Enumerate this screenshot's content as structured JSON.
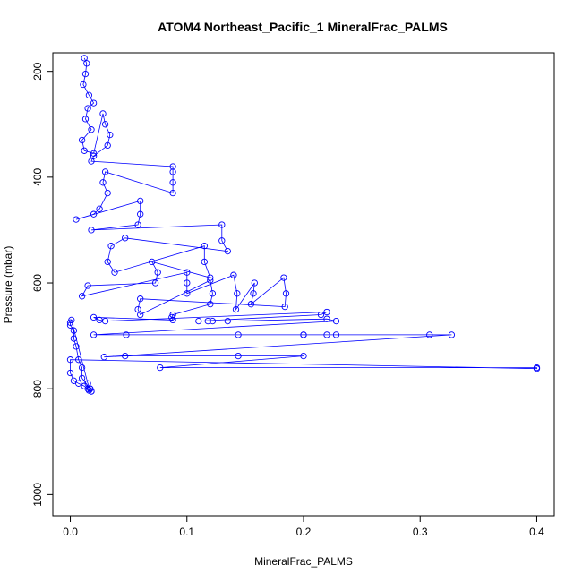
{
  "chart_data": {
    "type": "scatter",
    "title": "ATOM4 Northeast_Pacific_1 MineralFrac_PALMS",
    "xlabel": "MineralFrac_PALMS",
    "ylabel": "Pressure (mbar)",
    "xlim": [
      -0.015,
      0.415
    ],
    "ylim": [
      1040,
      165
    ],
    "y_reversed": true,
    "grid": false,
    "legend": "none",
    "xticks": [
      0.0,
      0.1,
      0.2,
      0.3,
      0.4
    ],
    "xtick_labels": [
      "0.0",
      "0.1",
      "0.2",
      "0.3",
      "0.4"
    ],
    "yticks": [
      200,
      400,
      600,
      800,
      1000
    ],
    "ytick_labels": [
      "200",
      "400",
      "600",
      "800",
      "1000"
    ],
    "marker_color": "#0000ff",
    "series": [
      {
        "x": [
          0.012,
          0.014,
          0.013,
          0.011,
          0.016,
          0.02,
          0.015,
          0.013,
          0.018,
          0.01,
          0.012,
          0.02,
          0.028,
          0.03,
          0.034,
          0.032,
          0.02,
          0.018,
          0.088,
          0.088,
          0.088,
          0.088,
          0.03,
          0.028,
          0.032,
          0.025,
          0.02,
          0.005,
          0.06,
          0.06,
          0.058,
          0.018,
          0.13,
          0.13,
          0.135,
          0.047,
          0.035,
          0.032,
          0.038,
          0.115,
          0.115,
          0.12,
          0.07,
          0.075,
          0.073,
          0.015,
          0.01,
          0.1,
          0.1,
          0.1,
          0.14,
          0.143,
          0.142,
          0.158,
          0.157,
          0.155,
          0.183,
          0.185,
          0.184,
          0.06,
          0.058,
          0.06,
          0.12,
          0.122,
          0.12,
          0.088,
          0.087,
          0.088,
          0.02,
          0.025,
          0.03,
          0.22,
          0.215,
          0.11,
          0.118,
          0.122,
          0.135,
          0.22,
          0.228,
          0.02,
          0.048,
          0.22,
          0.228,
          0.144,
          0.2,
          0.2,
          0.308,
          0.327,
          0.029,
          0.047,
          0.144,
          0.2,
          0.077,
          0.4,
          0.4,
          0.0,
          0.0,
          0.003,
          0.007,
          0.012,
          0.015,
          0.016,
          0.018,
          0.017,
          0.01,
          0.01,
          0.007,
          0.005,
          0.003,
          0.003,
          0.0,
          0.0,
          0.001,
          0.015,
          0.017,
          0.018
        ],
        "y": [
          175,
          185,
          205,
          225,
          245,
          260,
          270,
          290,
          310,
          330,
          350,
          355,
          280,
          300,
          320,
          340,
          360,
          370,
          380,
          390,
          410,
          430,
          390,
          410,
          430,
          460,
          470,
          480,
          445,
          470,
          490,
          500,
          490,
          520,
          540,
          515,
          530,
          560,
          580,
          530,
          560,
          590,
          560,
          580,
          600,
          605,
          625,
          580,
          600,
          620,
          585,
          620,
          650,
          600,
          620,
          640,
          590,
          620,
          645,
          630,
          650,
          660,
          595,
          620,
          640,
          660,
          665,
          670,
          665,
          670,
          672,
          655,
          660,
          672,
          672,
          672,
          672,
          668,
          672,
          698,
          698,
          698,
          698,
          698,
          698,
          698,
          698,
          698,
          740,
          738,
          738,
          738,
          760,
          760,
          762,
          745,
          770,
          785,
          790,
          795,
          800,
          803,
          805,
          800,
          780,
          760,
          745,
          720,
          705,
          690,
          680,
          675,
          670,
          790,
          800,
          805
        ]
      }
    ],
    "profile_count": 20
  }
}
